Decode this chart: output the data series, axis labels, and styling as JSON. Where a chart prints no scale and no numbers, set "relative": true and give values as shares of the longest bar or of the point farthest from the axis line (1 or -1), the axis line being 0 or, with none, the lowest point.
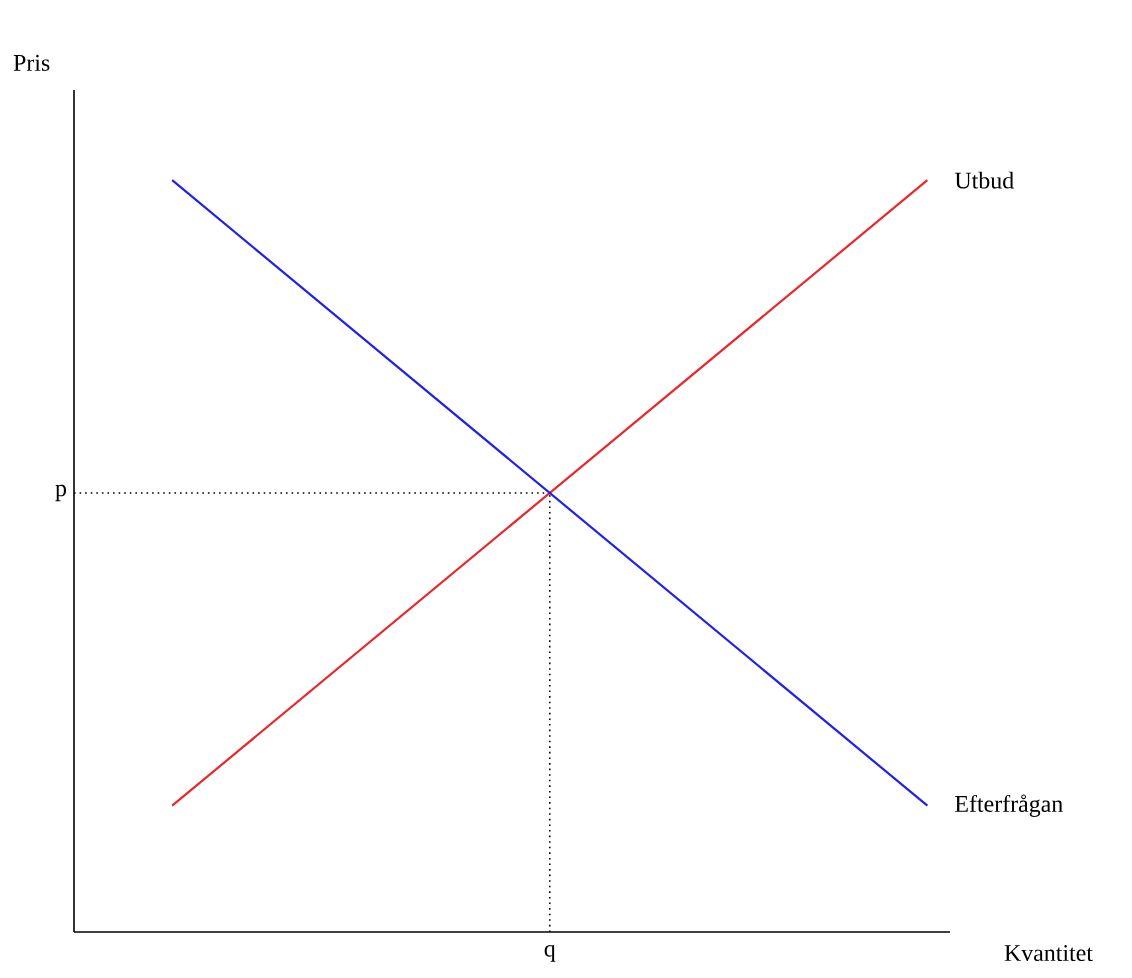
{
  "chart_data": {
    "type": "line",
    "relative": true,
    "xlabel": "Kvantitet",
    "ylabel": "Pris",
    "categories": [
      null,
      null
    ],
    "series": [
      {
        "name": "Utbud",
        "color": "#e8262b",
        "values": [
          0.168,
          1
        ]
      },
      {
        "name": "Efterfrågan",
        "color": "#2020e8",
        "values": [
          1,
          0.168
        ]
      }
    ],
    "ref_lines": [
      {
        "axis": "y",
        "value": 0.584,
        "label": "p",
        "line_style": "dotted"
      }
    ],
    "annotations": [
      "q"
    ]
  }
}
